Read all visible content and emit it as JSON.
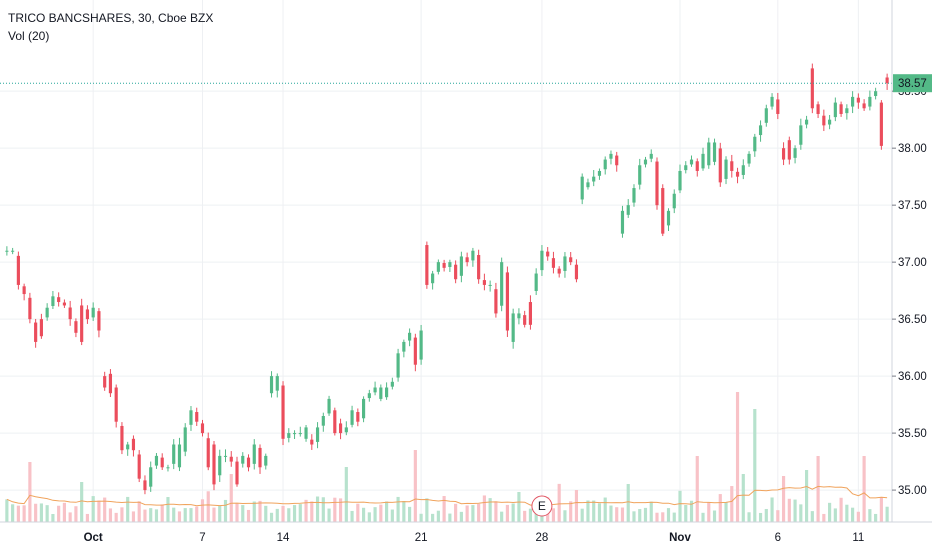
{
  "header": {
    "symbol_line": "TRICO BANCSHARES, 30, Cboe BZX",
    "volume_line": "Vol (20)"
  },
  "colors": {
    "up": "#53b987",
    "down": "#eb4d5c",
    "vol_up": "#b7e2cd",
    "vol_down": "#f8c2c7",
    "vol_ma": "#f0a35c",
    "grid": "#eef0f3",
    "price_line": "#26a69a",
    "price_badge": "#53b987",
    "event": "#e15563"
  },
  "price_badge": {
    "label": "38.57",
    "value": 38.57
  },
  "event_marker": {
    "label": "E",
    "date": "28"
  },
  "chart_data": {
    "type": "candlestick",
    "timeframe": "30",
    "ylim": [
      34.72,
      39.3
    ],
    "y_ticks": [
      {
        "value": 35.0,
        "label": "35.00"
      },
      {
        "value": 35.5,
        "label": "35.50"
      },
      {
        "value": 36.0,
        "label": "36.00"
      },
      {
        "value": 36.5,
        "label": "36.50"
      },
      {
        "value": 37.0,
        "label": "37.00"
      },
      {
        "value": 37.5,
        "label": "37.50"
      },
      {
        "value": 38.0,
        "label": "38.00"
      },
      {
        "value": 38.5,
        "label": "38.50"
      }
    ],
    "x_labels": [
      {
        "label": "Oct",
        "bar": 15,
        "bold": true
      },
      {
        "label": "7",
        "bar": 34,
        "bold": false
      },
      {
        "label": "14",
        "bar": 48,
        "bold": false
      },
      {
        "label": "21",
        "bar": 72,
        "bold": false
      },
      {
        "label": "28",
        "bar": 93,
        "bold": false
      },
      {
        "label": "Nov",
        "bar": 117,
        "bold": true
      },
      {
        "label": "6",
        "bar": 134,
        "bold": false
      },
      {
        "label": "11",
        "bar": 148,
        "bold": false
      }
    ],
    "bars_total": 154,
    "closes": [
      37.1,
      37.1,
      36.8,
      36.72,
      36.5,
      36.3,
      36.5,
      36.6,
      36.7,
      36.65,
      36.62,
      36.5,
      36.38,
      36.6,
      36.5,
      36.6,
      36.4,
      36.05,
      35.85,
      35.6,
      35.35,
      35.4,
      35.35,
      35.1,
      35.0,
      35.2,
      35.3,
      35.2,
      35.2,
      35.4,
      35.3,
      35.55,
      35.7,
      35.6,
      35.5,
      35.2,
      35.1,
      35.3,
      35.3,
      35.25,
      35.22,
      35.3,
      35.2,
      35.4,
      35.2,
      35.3,
      35.85,
      36.0,
      35.45,
      35.5,
      35.5,
      35.5,
      35.45,
      35.4,
      35.55,
      35.65,
      35.8,
      35.6,
      35.5,
      35.55,
      35.7,
      35.6,
      35.8,
      35.85,
      35.9,
      35.8,
      35.9,
      35.95,
      36.2,
      36.3,
      36.38,
      36.1,
      36.4,
      36.8,
      36.9,
      37.0,
      36.95,
      37.0,
      36.85,
      37.05,
      37.0,
      37.1,
      36.85,
      36.8,
      36.8,
      36.55,
      37.0,
      36.4,
      36.5,
      36.55,
      36.45,
      36.72,
      36.9,
      37.1,
      37.05,
      36.95,
      36.9,
      37.05,
      37.0,
      36.85,
      37.65,
      37.7,
      37.75,
      37.8,
      37.9,
      37.95,
      37.85,
      37.4,
      37.5,
      37.65,
      37.85,
      37.9,
      37.95,
      37.5,
      37.3,
      37.45,
      37.6,
      37.8,
      37.85,
      37.9,
      37.8,
      37.95,
      37.85,
      38.05,
      37.7,
      37.9,
      37.8,
      37.75,
      37.85,
      37.95,
      38.1,
      38.2,
      38.35,
      38.45,
      38.3,
      38.1,
      37.9,
      38.0,
      38.2,
      38.25,
      38.4,
      38.3,
      38.2,
      38.25,
      38.4,
      38.3,
      38.35,
      38.45,
      38.4,
      38.35,
      38.45,
      38.5,
      38.02,
      38.57
    ],
    "candles": [
      {
        "i": 6,
        "o": 36.5,
        "c": 36.35
      },
      {
        "i": 13,
        "o": 36.62,
        "c": 36.3
      },
      {
        "i": 17,
        "o": 36.0,
        "c": 35.9
      },
      {
        "i": 19,
        "o": 35.9,
        "c": 35.6
      },
      {
        "i": 22,
        "o": 35.45,
        "c": 35.35
      },
      {
        "i": 30,
        "o": 35.2,
        "c": 35.4
      },
      {
        "i": 36,
        "o": 35.4,
        "c": 35.05
      },
      {
        "i": 40,
        "o": 35.25,
        "c": 35.05
      },
      {
        "i": 46,
        "o": 35.85,
        "c": 36.0
      },
      {
        "i": 52,
        "o": 35.45,
        "c": 35.55
      },
      {
        "i": 57,
        "o": 35.7,
        "c": 35.5
      },
      {
        "i": 65,
        "o": 35.8,
        "c": 35.9
      },
      {
        "i": 73,
        "o": 37.15,
        "c": 36.8
      },
      {
        "i": 88,
        "o": 36.3,
        "c": 36.55
      },
      {
        "i": 91,
        "o": 36.65,
        "c": 36.45
      },
      {
        "i": 100,
        "o": 37.55,
        "c": 37.75
      },
      {
        "i": 107,
        "o": 37.25,
        "c": 37.45
      },
      {
        "i": 114,
        "o": 37.65,
        "c": 37.25
      },
      {
        "i": 122,
        "o": 37.85,
        "c": 38.05
      },
      {
        "i": 135,
        "o": 38.0,
        "c": 37.9
      },
      {
        "i": 140,
        "o": 38.7,
        "c": 38.35
      },
      {
        "i": 152,
        "o": 38.4,
        "c": 38.02
      },
      {
        "i": 153,
        "o": 38.62,
        "c": 38.57
      }
    ]
  }
}
